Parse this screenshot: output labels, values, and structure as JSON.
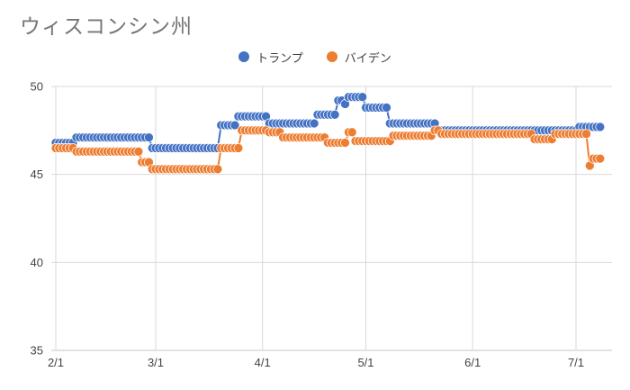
{
  "title": "ウィスコンシン州",
  "legend": {
    "items": [
      {
        "label": "トランプ",
        "color": "#4472C4"
      },
      {
        "label": "バイデン",
        "color": "#ED7D31"
      }
    ]
  },
  "chart_data": {
    "type": "line",
    "title": "ウィスコンシン州",
    "sampling": "daily step values, markers on every day",
    "date_range": [
      "2/1",
      "7/8"
    ],
    "x_tick_labels": [
      "2/1",
      "3/1",
      "4/1",
      "5/1",
      "6/1",
      "7/1"
    ],
    "y_ticks": [
      50,
      45,
      40,
      35
    ],
    "ylim": [
      35,
      50
    ],
    "grid": true,
    "legend_position": "top-center",
    "series": [
      {
        "name": "トランプ",
        "color": "#4472C4",
        "segments": [
          [
            "2/1",
            "2/6",
            46.8
          ],
          [
            "2/7",
            "2/28",
            47.1
          ],
          [
            "2/29",
            "3/19",
            46.5
          ],
          [
            "3/20",
            "3/24",
            47.8
          ],
          [
            "3/25",
            "4/2",
            48.3
          ],
          [
            "4/3",
            "4/16",
            47.9
          ],
          [
            "4/17",
            "4/22",
            48.4
          ],
          [
            "4/23",
            "4/24",
            49.2
          ],
          [
            "4/25",
            "4/25",
            49.0
          ],
          [
            "4/26",
            "4/30",
            49.4
          ],
          [
            "5/1",
            "5/7",
            48.8
          ],
          [
            "5/8",
            "5/21",
            47.9
          ],
          [
            "5/22",
            "7/1",
            47.5
          ],
          [
            "7/2",
            "7/8",
            47.7
          ]
        ]
      },
      {
        "name": "バイデン",
        "color": "#ED7D31",
        "segments": [
          [
            "2/1",
            "2/6",
            46.5
          ],
          [
            "2/7",
            "2/25",
            46.3
          ],
          [
            "2/26",
            "2/28",
            45.7
          ],
          [
            "2/29",
            "3/19",
            45.3
          ],
          [
            "3/20",
            "3/25",
            46.5
          ],
          [
            "3/26",
            "4/2",
            47.5
          ],
          [
            "4/3",
            "4/6",
            47.4
          ],
          [
            "4/7",
            "4/19",
            47.1
          ],
          [
            "4/20",
            "4/25",
            46.8
          ],
          [
            "4/26",
            "4/27",
            47.4
          ],
          [
            "4/28",
            "5/8",
            46.9
          ],
          [
            "5/9",
            "5/20",
            47.2
          ],
          [
            "5/21",
            "5/22",
            47.5
          ],
          [
            "5/23",
            "6/18",
            47.3
          ],
          [
            "6/19",
            "6/24",
            47.0
          ],
          [
            "6/25",
            "7/4",
            47.3
          ],
          [
            "7/5",
            "7/5",
            45.5
          ],
          [
            "7/6",
            "7/8",
            45.9
          ]
        ]
      }
    ],
    "colors": {
      "grid": "#D9D9D9",
      "axis": "#C6C6C6",
      "axis_text": "#444444"
    }
  }
}
